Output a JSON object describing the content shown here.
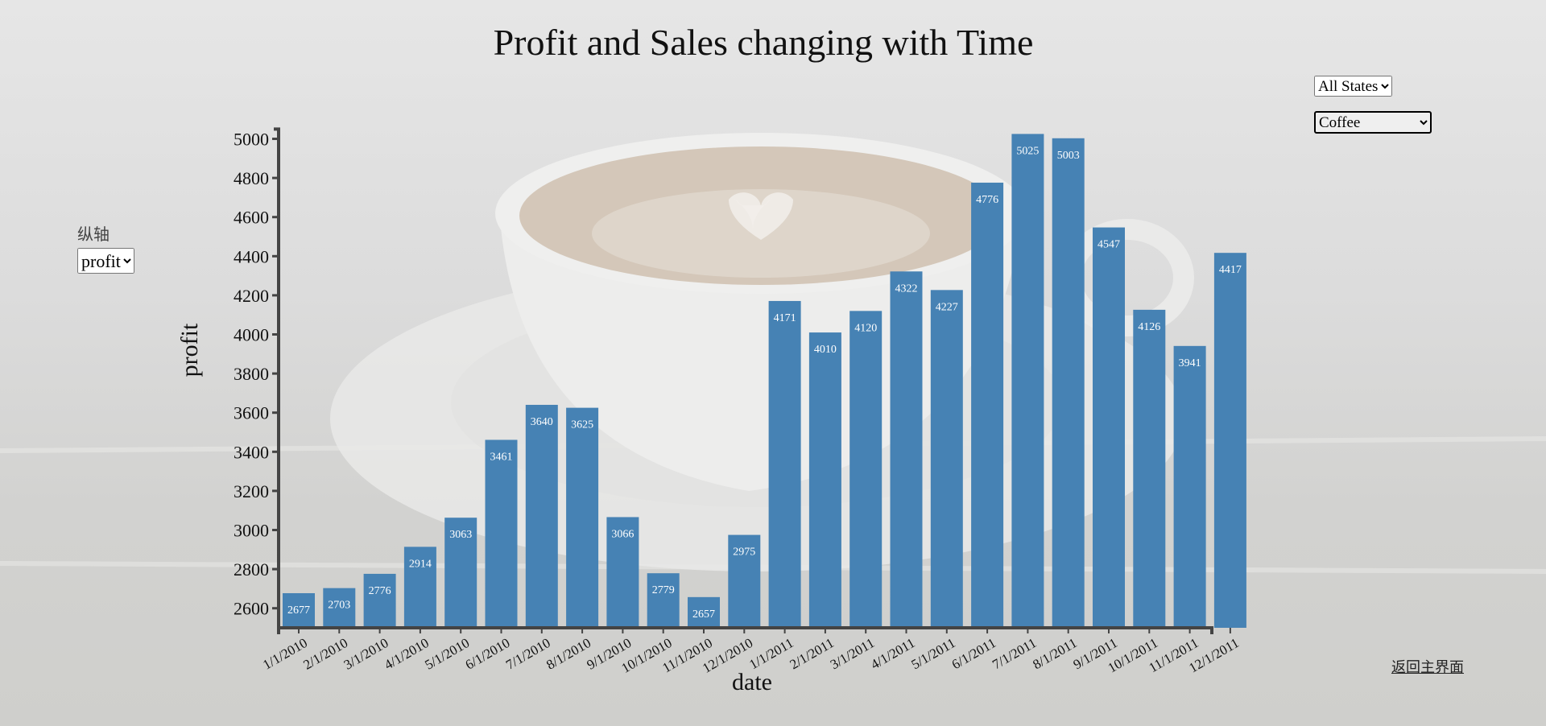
{
  "page": {
    "title": "Profit and Sales changing with Time",
    "state_filter": {
      "selected": "All States",
      "options": [
        "All States"
      ]
    },
    "product_filter": {
      "selected": "Coffee",
      "options": [
        "Coffee"
      ]
    },
    "axis_control": {
      "caption": "纵轴",
      "selected": "profit",
      "options": [
        "profit"
      ]
    },
    "back_link": "返回主界面"
  },
  "colors": {
    "bar": "#4682b4",
    "bar_label": "#ffffff",
    "axis": "#444444"
  },
  "chart_data": {
    "type": "bar",
    "title": "Profit and Sales changing with Time",
    "xlabel": "date",
    "ylabel": "profit",
    "ylim": [
      2500,
      5050
    ],
    "yticks": [
      2600,
      2800,
      3000,
      3200,
      3400,
      3600,
      3800,
      4000,
      4200,
      4400,
      4600,
      4800,
      5000
    ],
    "categories": [
      "1/1/2010",
      "2/1/2010",
      "3/1/2010",
      "4/1/2010",
      "5/1/2010",
      "6/1/2010",
      "7/1/2010",
      "8/1/2010",
      "9/1/2010",
      "10/1/2010",
      "11/1/2010",
      "12/1/2010",
      "1/1/2011",
      "2/1/2011",
      "3/1/2011",
      "4/1/2011",
      "5/1/2011",
      "6/1/2011",
      "7/1/2011",
      "8/1/2011",
      "9/1/2011",
      "10/1/2011",
      "11/1/2011",
      "12/1/2011"
    ],
    "values": [
      2677,
      2703,
      2776,
      2914,
      3063,
      3461,
      3640,
      3625,
      3066,
      2779,
      2657,
      2975,
      4171,
      4010,
      4120,
      4322,
      4227,
      4776,
      5025,
      5003,
      4547,
      4126,
      3941,
      4417
    ]
  }
}
